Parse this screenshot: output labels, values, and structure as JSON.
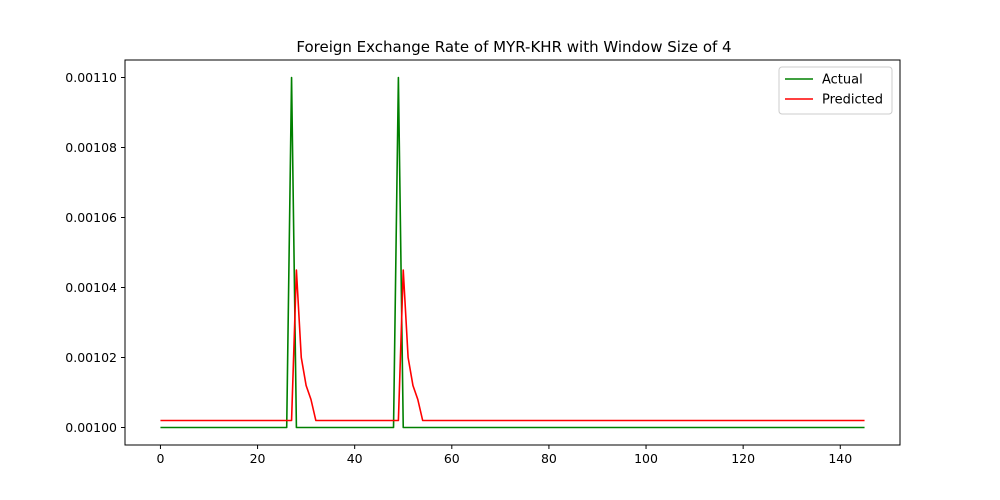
{
  "chart_data": {
    "type": "line",
    "title": "Foreign Exchange Rate of MYR-KHR with Window Size of 4",
    "xlabel": "",
    "ylabel": "",
    "xlim": [
      -7.3,
      152.3
    ],
    "ylim": [
      0.000995,
      0.001105
    ],
    "x_ticks": [
      0,
      20,
      40,
      60,
      80,
      100,
      120,
      140
    ],
    "x_tick_labels": [
      "0",
      "20",
      "40",
      "60",
      "80",
      "100",
      "120",
      "140"
    ],
    "y_ticks": [
      0.001,
      0.00102,
      0.00104,
      0.00106,
      0.00108,
      0.0011
    ],
    "y_tick_labels": [
      "0.00100",
      "0.00102",
      "0.00104",
      "0.00106",
      "0.00108",
      "0.00110"
    ],
    "grid": false,
    "legend_position": "top-right",
    "series": [
      {
        "name": "Actual",
        "color": "#008000",
        "x": [
          0,
          26,
          27,
          28,
          48,
          49,
          50,
          145
        ],
        "y": [
          0.001,
          0.001,
          0.0011,
          0.001,
          0.001,
          0.0011,
          0.001,
          0.001
        ]
      },
      {
        "name": "Predicted",
        "color": "#ff0000",
        "x": [
          0,
          27,
          28,
          29,
          30,
          31,
          32,
          49,
          50,
          51,
          52,
          53,
          54,
          145
        ],
        "y": [
          0.001002,
          0.001002,
          0.001045,
          0.00102,
          0.001012,
          0.001008,
          0.001002,
          0.001002,
          0.001045,
          0.00102,
          0.001012,
          0.001008,
          0.001002,
          0.001002
        ]
      }
    ]
  }
}
